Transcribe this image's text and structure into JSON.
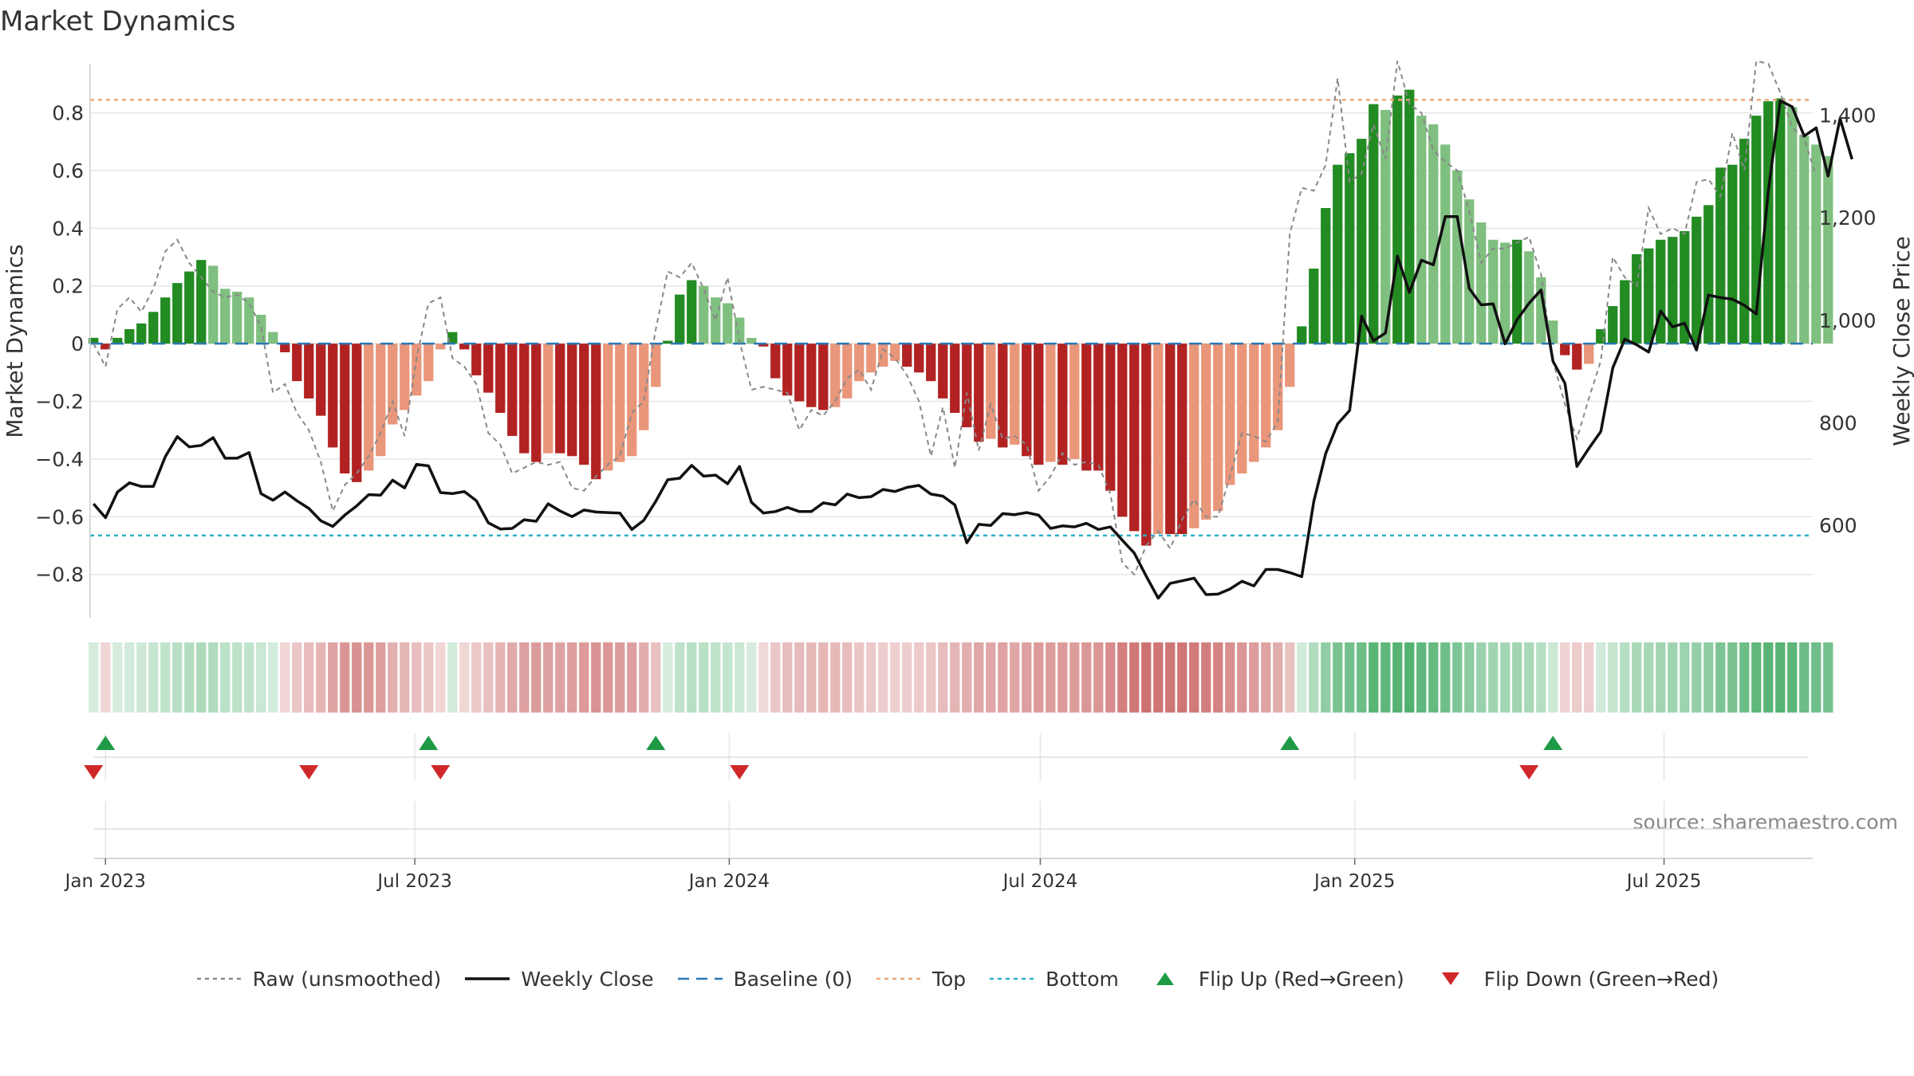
{
  "page": {
    "title": "Market Dynamics",
    "source": "source: sharemaestro.com"
  },
  "legend": [
    {
      "label": "Raw (unsmoothed)",
      "kind": "line-dotted",
      "color": "#888888"
    },
    {
      "label": "Weekly Close",
      "kind": "line-solid",
      "color": "#111111"
    },
    {
      "label": "Baseline (0)",
      "kind": "line-dashed",
      "color": "#2a78b5"
    },
    {
      "label": "Top",
      "kind": "line-dotted",
      "color": "#f0a878"
    },
    {
      "label": "Bottom",
      "kind": "line-dotted",
      "color": "#2ab0c8"
    },
    {
      "label": "Flip Up (Red→Green)",
      "kind": "triangle-up",
      "color": "#1e9a46"
    },
    {
      "label": "Flip Down (Green→Red)",
      "kind": "triangle-down",
      "color": "#d0282a"
    }
  ],
  "colors": {
    "green_strong": "#228b22",
    "green_light": "#7fbf7f",
    "red_strong": "#b22222",
    "red_light": "#e9967a",
    "raw": "#888888",
    "close": "#111111",
    "baseline": "#2a78b5",
    "top": "#f0a878",
    "bottom": "#2ab0c8",
    "flip_up": "#1e9a46",
    "flip_down": "#d0282a",
    "grid": "#e6e6e6"
  },
  "chart_data": {
    "type": "bar",
    "title": "Market Dynamics",
    "ylabel": "Market Dynamics",
    "y2label": "Weekly Close Price",
    "ylim": [
      -0.95,
      0.97
    ],
    "y2lim": [
      420,
      1500
    ],
    "yticks": [
      -0.8,
      -0.6,
      -0.4,
      -0.2,
      0,
      0.2,
      0.4,
      0.6,
      0.8
    ],
    "ytick_labels": [
      "−0.8",
      "−0.6",
      "−0.4",
      "−0.2",
      "0",
      "0.2",
      "0.4",
      "0.6",
      "0.8"
    ],
    "y2ticks": [
      600,
      800,
      1000,
      1200,
      1400
    ],
    "y2tick_labels": [
      "600",
      "800",
      "1,000",
      "1,200",
      "1,400"
    ],
    "x_start": "2022-12-23",
    "x_end": "2025-09-26",
    "week_start": "2022-12-25",
    "weeks": 144,
    "xticks": [
      "2023-01-01",
      "2023-07-01",
      "2024-01-01",
      "2024-07-01",
      "2025-01-01",
      "2025-07-01"
    ],
    "xtick_labels": [
      "Jan 2023",
      "Jul 2023",
      "Jan 2024",
      "Jul 2024",
      "Jan 2025",
      "Jul 2025"
    ],
    "top_level": 0.845,
    "bottom_level": -0.665,
    "baseline": 0,
    "grid": true,
    "legend_position": "bottom",
    "series": [
      {
        "name": "Market Dynamics",
        "type": "bar",
        "values": [
          0.02,
          -0.02,
          0.02,
          0.05,
          0.07,
          0.11,
          0.16,
          0.21,
          0.25,
          0.29,
          0.27,
          0.19,
          0.18,
          0.16,
          0.1,
          0.04,
          -0.03,
          -0.13,
          -0.19,
          -0.25,
          -0.36,
          -0.45,
          -0.48,
          -0.44,
          -0.39,
          -0.28,
          -0.23,
          -0.18,
          -0.13,
          -0.02,
          0.04,
          -0.02,
          -0.11,
          -0.17,
          -0.24,
          -0.32,
          -0.38,
          -0.41,
          -0.38,
          -0.38,
          -0.39,
          -0.42,
          -0.47,
          -0.44,
          -0.41,
          -0.39,
          -0.3,
          -0.15,
          0.01,
          0.17,
          0.22,
          0.2,
          0.16,
          0.14,
          0.09,
          0.02,
          -0.01,
          -0.12,
          -0.18,
          -0.2,
          -0.22,
          -0.23,
          -0.22,
          -0.19,
          -0.13,
          -0.1,
          -0.08,
          -0.06,
          -0.08,
          -0.1,
          -0.13,
          -0.19,
          -0.24,
          -0.29,
          -0.34,
          -0.33,
          -0.36,
          -0.35,
          -0.39,
          -0.42,
          -0.41,
          -0.42,
          -0.4,
          -0.44,
          -0.44,
          -0.51,
          -0.6,
          -0.65,
          -0.7,
          -0.66,
          -0.66,
          -0.66,
          -0.64,
          -0.61,
          -0.58,
          -0.49,
          -0.45,
          -0.41,
          -0.36,
          -0.3,
          -0.15,
          0.06,
          0.26,
          0.47,
          0.62,
          0.66,
          0.71,
          0.83,
          0.81,
          0.86,
          0.88,
          0.79,
          0.76,
          0.69,
          0.6,
          0.5,
          0.42,
          0.36,
          0.35,
          0.36,
          0.32,
          0.23,
          0.08,
          -0.04,
          -0.09,
          -0.07,
          0.05,
          0.13,
          0.22,
          0.31,
          0.33,
          0.36,
          0.37,
          0.39,
          0.44,
          0.48,
          0.61,
          0.62,
          0.71,
          0.79,
          0.84,
          0.85,
          0.82,
          0.72,
          0.69,
          0.65
        ]
      },
      {
        "name": "Raw (unsmoothed)",
        "type": "line",
        "values": [
          0.0,
          -0.08,
          0.12,
          0.16,
          0.11,
          0.19,
          0.32,
          0.36,
          0.28,
          0.23,
          0.18,
          0.16,
          0.17,
          0.14,
          0.06,
          -0.17,
          -0.14,
          -0.24,
          -0.3,
          -0.41,
          -0.58,
          -0.49,
          -0.45,
          -0.39,
          -0.31,
          -0.2,
          -0.32,
          -0.05,
          0.14,
          0.16,
          -0.05,
          -0.08,
          -0.14,
          -0.31,
          -0.35,
          -0.45,
          -0.43,
          -0.41,
          -0.42,
          -0.41,
          -0.5,
          -0.51,
          -0.46,
          -0.42,
          -0.39,
          -0.24,
          -0.2,
          0.05,
          0.25,
          0.23,
          0.28,
          0.19,
          0.08,
          0.23,
          0.01,
          -0.16,
          -0.15,
          -0.16,
          -0.17,
          -0.3,
          -0.23,
          -0.25,
          -0.2,
          -0.12,
          -0.09,
          -0.16,
          -0.02,
          -0.05,
          -0.11,
          -0.2,
          -0.39,
          -0.22,
          -0.43,
          -0.17,
          -0.37,
          -0.21,
          -0.33,
          -0.32,
          -0.35,
          -0.51,
          -0.46,
          -0.38,
          -0.42,
          -0.41,
          -0.42,
          -0.52,
          -0.76,
          -0.8,
          -0.7,
          -0.65,
          -0.71,
          -0.61,
          -0.54,
          -0.6,
          -0.6,
          -0.46,
          -0.31,
          -0.32,
          -0.34,
          -0.27,
          0.38,
          0.54,
          0.53,
          0.62,
          0.92,
          0.56,
          0.59,
          0.76,
          0.64,
          0.98,
          0.83,
          0.8,
          0.67,
          0.63,
          0.6,
          0.46,
          0.28,
          0.33,
          0.33,
          0.35,
          0.37,
          0.24,
          -0.06,
          -0.21,
          -0.33,
          -0.19,
          -0.06,
          0.3,
          0.23,
          0.2,
          0.47,
          0.38,
          0.4,
          0.38,
          0.56,
          0.57,
          0.51,
          0.73,
          0.6,
          0.98,
          0.97,
          0.87,
          0.75,
          0.71,
          0.58
        ]
      },
      {
        "name": "Weekly Close",
        "type": "line",
        "axis": "right",
        "values": [
          642,
          615,
          665,
          683,
          676,
          676,
          734,
          773,
          753,
          756,
          771,
          731,
          731,
          742,
          662,
          649,
          665,
          648,
          633,
          609,
          598,
          620,
          638,
          660,
          659,
          688,
          673,
          719,
          716,
          664,
          662,
          666,
          648,
          605,
          593,
          594,
          611,
          608,
          642,
          628,
          617,
          630,
          626,
          625,
          624,
          592,
          610,
          647,
          689,
          692,
          717,
          696,
          698,
          681,
          715,
          645,
          624,
          627,
          635,
          627,
          627,
          644,
          640,
          661,
          654,
          656,
          670,
          666,
          674,
          678,
          661,
          657,
          640,
          566,
          602,
          600,
          623,
          621,
          625,
          620,
          594,
          599,
          597,
          604,
          592,
          597,
          571,
          546,
          501,
          458,
          487,
          492,
          497,
          465,
          466,
          476,
          491,
          482,
          514,
          514,
          508,
          500,
          646,
          740,
          798,
          824,
          1008,
          960,
          975,
          1125,
          1054,
          1117,
          1108,
          1202,
          1202,
          1062,
          1030,
          1032,
          954,
          1001,
          1033,
          1059,
          920,
          877,
          715,
          750,
          783,
          907,
          963,
          952,
          938,
          1018,
          987,
          994,
          942,
          1049,
          1044,
          1041,
          1029,
          1012,
          1252,
          1428,
          1416,
          1359,
          1375,
          1281,
          1393,
          1314
        ]
      }
    ],
    "signals": [
      {
        "type": "flip_up",
        "date": "2023-01-01"
      },
      {
        "type": "flip_down",
        "date": "2022-12-25"
      },
      {
        "type": "flip_down",
        "date": "2023-04-30"
      },
      {
        "type": "flip_up",
        "date": "2023-07-09"
      },
      {
        "type": "flip_down",
        "date": "2023-07-16"
      },
      {
        "type": "flip_up",
        "date": "2023-11-19"
      },
      {
        "type": "flip_down",
        "date": "2024-01-07"
      },
      {
        "type": "flip_up",
        "date": "2024-11-24"
      },
      {
        "type": "flip_down",
        "date": "2025-04-13"
      },
      {
        "type": "flip_up",
        "date": "2025-04-27"
      }
    ]
  }
}
